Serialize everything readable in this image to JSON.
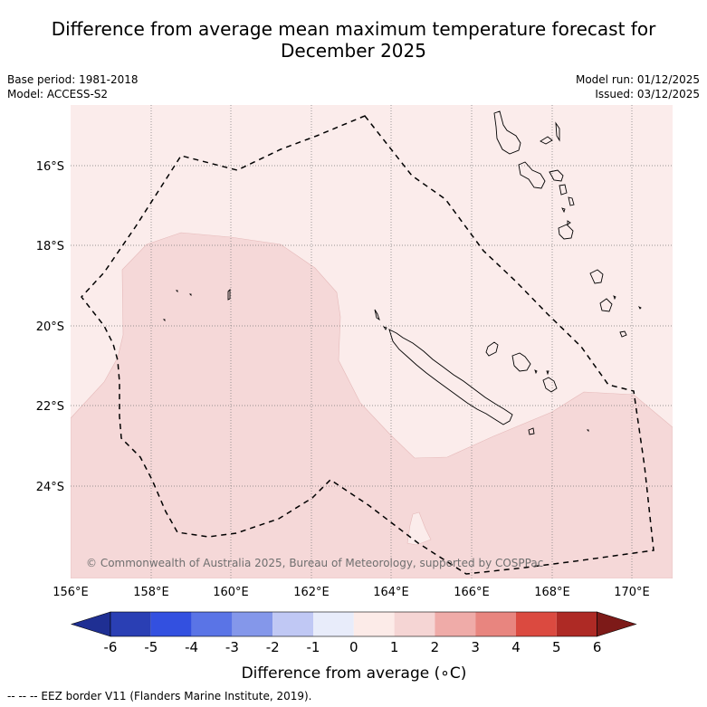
{
  "title_line1": "Difference from average mean maximum temperature forecast for",
  "title_line2": "December 2025",
  "base_period": "Base period: 1981-2018",
  "model": "Model: ACCESS-S2",
  "model_run": "Model run: 01/12/2025",
  "issued": "Issued: 03/12/2025",
  "copyright": "© Commonwealth of Australia 2025, Bureau of Meteorology, supported by COSPPac",
  "footer_note": "--  --  -- EEZ border V11 (Flanders Marine Institute, 2019).",
  "lat_labels": [
    "16°S",
    "18°S",
    "20°S",
    "22°S",
    "24°S"
  ],
  "lon_labels": [
    "156°E",
    "158°E",
    "160°E",
    "162°E",
    "164°E",
    "166°E",
    "168°E",
    "170°E"
  ],
  "colorbar": {
    "label": "Difference from average (∘C)",
    "ticks": [
      "-6",
      "-5",
      "-4",
      "-3",
      "-2",
      "-1",
      "0",
      "1",
      "2",
      "3",
      "4",
      "5",
      "6"
    ],
    "colors": [
      "#1f2f93",
      "#2a3fb4",
      "#3350e0",
      "#5a74e6",
      "#8497ea",
      "#c0c8f4",
      "#e8ecfa",
      "#fcebe8",
      "#f5d5d4",
      "#efaba8",
      "#e8857f",
      "#db4a40",
      "#ae2a25",
      "#7d1a18"
    ],
    "map_color_0_1": "#fbeceb",
    "map_color_1_2": "#f5d8d8"
  }
}
